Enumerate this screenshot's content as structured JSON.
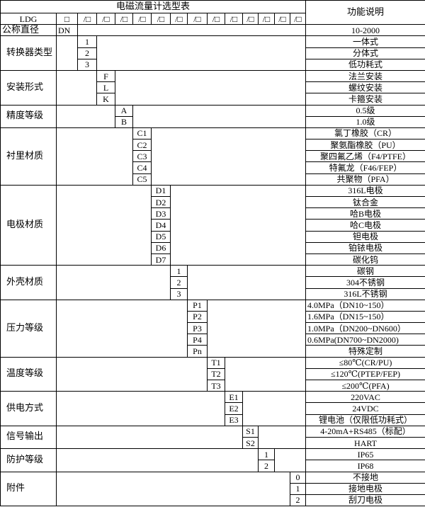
{
  "title": "电磁流量计选型表",
  "function_header": "功能说明",
  "model_prefix": "LDG",
  "model_slots": [
    "□",
    "/□",
    "/□",
    "/□",
    "/□",
    "/□",
    "/□",
    "/□",
    "/□",
    "/□",
    "/□",
    "/□",
    "/□",
    "/□"
  ],
  "nominal_diameter": {
    "label": "公称直径",
    "code": "DN",
    "description": "10-2000"
  },
  "groups": [
    {
      "label": "转换器类型",
      "column": 2,
      "options": [
        {
          "code": "1",
          "description": "一体式"
        },
        {
          "code": "2",
          "description": "分体式"
        },
        {
          "code": "3",
          "description": "低功耗式"
        }
      ]
    },
    {
      "label": "安装形式",
      "column": 3,
      "options": [
        {
          "code": "F",
          "description": "法兰安装"
        },
        {
          "code": "L",
          "description": "螺纹安装"
        },
        {
          "code": "K",
          "description": "卡箍安装"
        }
      ]
    },
    {
      "label": "精度等级",
      "column": 4,
      "options": [
        {
          "code": "A",
          "description": "0.5级"
        },
        {
          "code": "B",
          "description": "1.0级"
        }
      ]
    },
    {
      "label": "衬里材质",
      "column": 5,
      "options": [
        {
          "code": "C1",
          "description": "氯丁橡胶（CR）"
        },
        {
          "code": "C2",
          "description": "聚氨酯橡胶（PU）"
        },
        {
          "code": "C3",
          "description": "聚四氟乙烯（F4/PTFE）"
        },
        {
          "code": "C4",
          "description": "特氟龙（F46/FEP）"
        },
        {
          "code": "C5",
          "description": "共聚物（PFA）"
        }
      ]
    },
    {
      "label": "电极材质",
      "column": 6,
      "options": [
        {
          "code": "D1",
          "description": "316L电极"
        },
        {
          "code": "D2",
          "description": "钛合金"
        },
        {
          "code": "D3",
          "description": "哈B电极"
        },
        {
          "code": "D4",
          "description": "哈C电极"
        },
        {
          "code": "D5",
          "description": "钽电极"
        },
        {
          "code": "D6",
          "description": "铂铱电极"
        },
        {
          "code": "D7",
          "description": "碳化钨"
        }
      ]
    },
    {
      "label": "外壳材质",
      "column": 7,
      "options": [
        {
          "code": "1",
          "description": "碳钢"
        },
        {
          "code": "2",
          "description": "304不锈钢"
        },
        {
          "code": "3",
          "description": "316L不锈钢"
        }
      ]
    },
    {
      "label": "压力等级",
      "column": 8,
      "align": "left",
      "options": [
        {
          "code": "P1",
          "description": "4.0MPa（DN10~150）"
        },
        {
          "code": "P2",
          "description": "1.6MPa（DN15~150）"
        },
        {
          "code": "P3",
          "description": "1.0MPa（DN200~DN600）"
        },
        {
          "code": "P4",
          "description": "0.6MPa(DN700~DN2000)"
        },
        {
          "code": "Pn",
          "description": "特殊定制",
          "center": true
        }
      ]
    },
    {
      "label": "温度等级",
      "column": 9,
      "options": [
        {
          "code": "T1",
          "description": "≤80℃(CR/PU)"
        },
        {
          "code": "T2",
          "description": "≤120℃(PTEP/FEP)"
        },
        {
          "code": "T3",
          "description": "≤200℃(PFA)"
        }
      ]
    },
    {
      "label": "供电方式",
      "column": 10,
      "options": [
        {
          "code": "E1",
          "description": "220VAC"
        },
        {
          "code": "E2",
          "description": "24VDC"
        },
        {
          "code": "E3",
          "description": "锂电池（仅限低功耗式）"
        }
      ]
    },
    {
      "label": "信号输出",
      "column": 11,
      "options": [
        {
          "code": "S1",
          "description": "4-20mA+RS485（标配）"
        },
        {
          "code": "S2",
          "description": "HART"
        }
      ]
    },
    {
      "label": "防护等级",
      "column": 12,
      "options": [
        {
          "code": "1",
          "description": "IP65"
        },
        {
          "code": "2",
          "description": "IP68"
        }
      ]
    },
    {
      "label": "附件",
      "column": 14,
      "options": [
        {
          "code": "0",
          "description": "不接地"
        },
        {
          "code": "1",
          "description": "接地电极"
        },
        {
          "code": "2",
          "description": "刮刀电极"
        }
      ]
    }
  ]
}
